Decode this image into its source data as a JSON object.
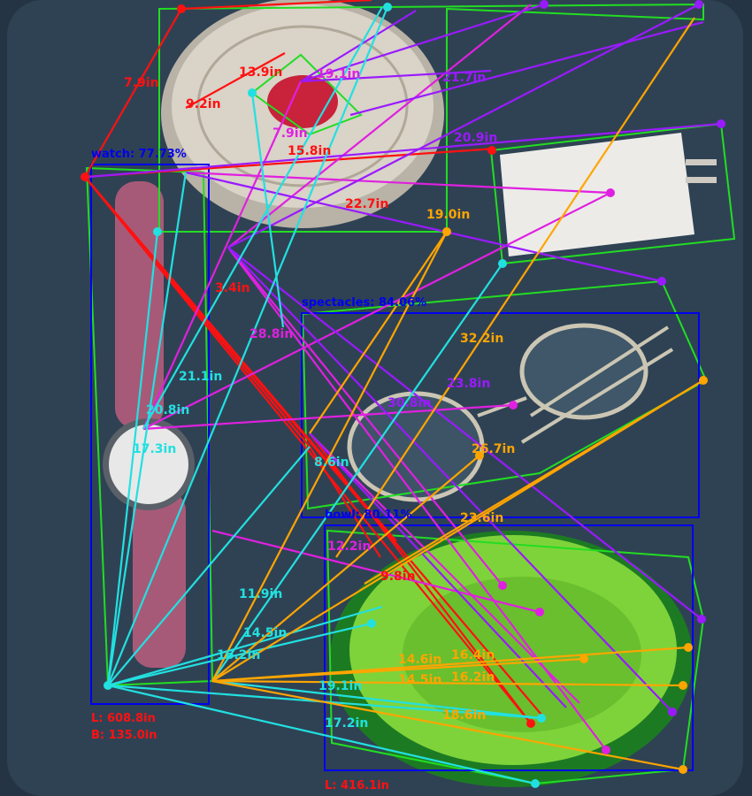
{
  "scene": {
    "description_tag": "annotated-photo",
    "colors": {
      "background": "#2c3d4e",
      "bbox": "#0000ee",
      "hull": "#22dd22",
      "red": "#ff1111",
      "magenta": "#e020e0",
      "violet": "#9a1aff",
      "cyan": "#22e0e0",
      "orange": "#ffa500"
    }
  },
  "detections": [
    {
      "label": "watch: 77.73%",
      "length": "L: 608.8in",
      "breadth": "B: 135.0in"
    },
    {
      "label": "spectacles: 84.06%"
    },
    {
      "label": "bowl: 80.11%",
      "length": "L: 416.1in"
    }
  ],
  "measurements": {
    "red": [
      "7.9in",
      "9.2in",
      "13.9in",
      "15.8in",
      "3.4in",
      "22.7in",
      "9.8in"
    ],
    "magenta": [
      "19.1in",
      "7.9in",
      "28.8in",
      "12.2in"
    ],
    "violet": [
      "20.9in",
      "21.7in",
      "23.8in",
      "30.8in"
    ],
    "orange": [
      "19.0in",
      "32.2in",
      "26.7in",
      "14.6in",
      "14.5in",
      "16.4in",
      "16.2in",
      "18.6in",
      "23.6in"
    ],
    "cyan": [
      "21.1in",
      "20.8in",
      "17.3in",
      "11.9in",
      "14.5in",
      "16.2in",
      "19.1in",
      "17.2in",
      "8.6in"
    ]
  }
}
